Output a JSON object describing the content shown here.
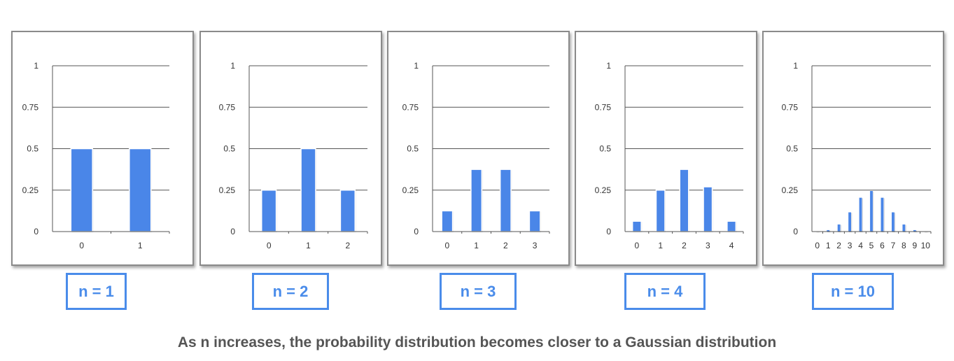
{
  "colors": {
    "bar": "#4a86e8",
    "label_border": "#4a8cea",
    "caption": "#555555",
    "grid": "#555555"
  },
  "chart_data": [
    {
      "type": "bar",
      "categories": [
        "0",
        "1"
      ],
      "values": [
        0.5,
        0.5
      ],
      "ylim": [
        0,
        1
      ],
      "yticks": [
        "0",
        "0.25",
        "0.5",
        "0.75",
        "1"
      ],
      "grid": true,
      "label": "n = 1"
    },
    {
      "type": "bar",
      "categories": [
        "0",
        "1",
        "2"
      ],
      "values": [
        0.25,
        0.5,
        0.25
      ],
      "ylim": [
        0,
        1
      ],
      "yticks": [
        "0",
        "0.25",
        "0.5",
        "0.75",
        "1"
      ],
      "grid": true,
      "label": "n = 2"
    },
    {
      "type": "bar",
      "categories": [
        "0",
        "1",
        "2",
        "3"
      ],
      "values": [
        0.125,
        0.375,
        0.375,
        0.125
      ],
      "ylim": [
        0,
        1
      ],
      "yticks": [
        "0",
        "0.25",
        "0.5",
        "0.75",
        "1"
      ],
      "grid": true,
      "label": "n = 3"
    },
    {
      "type": "bar",
      "categories": [
        "0",
        "1",
        "2",
        "3",
        "4"
      ],
      "values": [
        0.0625,
        0.25,
        0.375,
        0.27,
        0.0625
      ],
      "ylim": [
        0,
        1
      ],
      "yticks": [
        "0",
        "0.25",
        "0.5",
        "0.75",
        "1"
      ],
      "grid": true,
      "label": "n = 4"
    },
    {
      "type": "bar",
      "categories": [
        "0",
        "1",
        "2",
        "3",
        "4",
        "5",
        "6",
        "7",
        "8",
        "9",
        "10"
      ],
      "values": [
        0.001,
        0.01,
        0.044,
        0.117,
        0.205,
        0.246,
        0.205,
        0.117,
        0.044,
        0.01,
        0.001
      ],
      "ylim": [
        0,
        1
      ],
      "yticks": [
        "0",
        "0.25",
        "0.5",
        "0.75",
        "1"
      ],
      "grid": true,
      "label": "n = 10"
    }
  ],
  "caption": "As n increases, the probability distribution becomes closer to a Gaussian distribution"
}
